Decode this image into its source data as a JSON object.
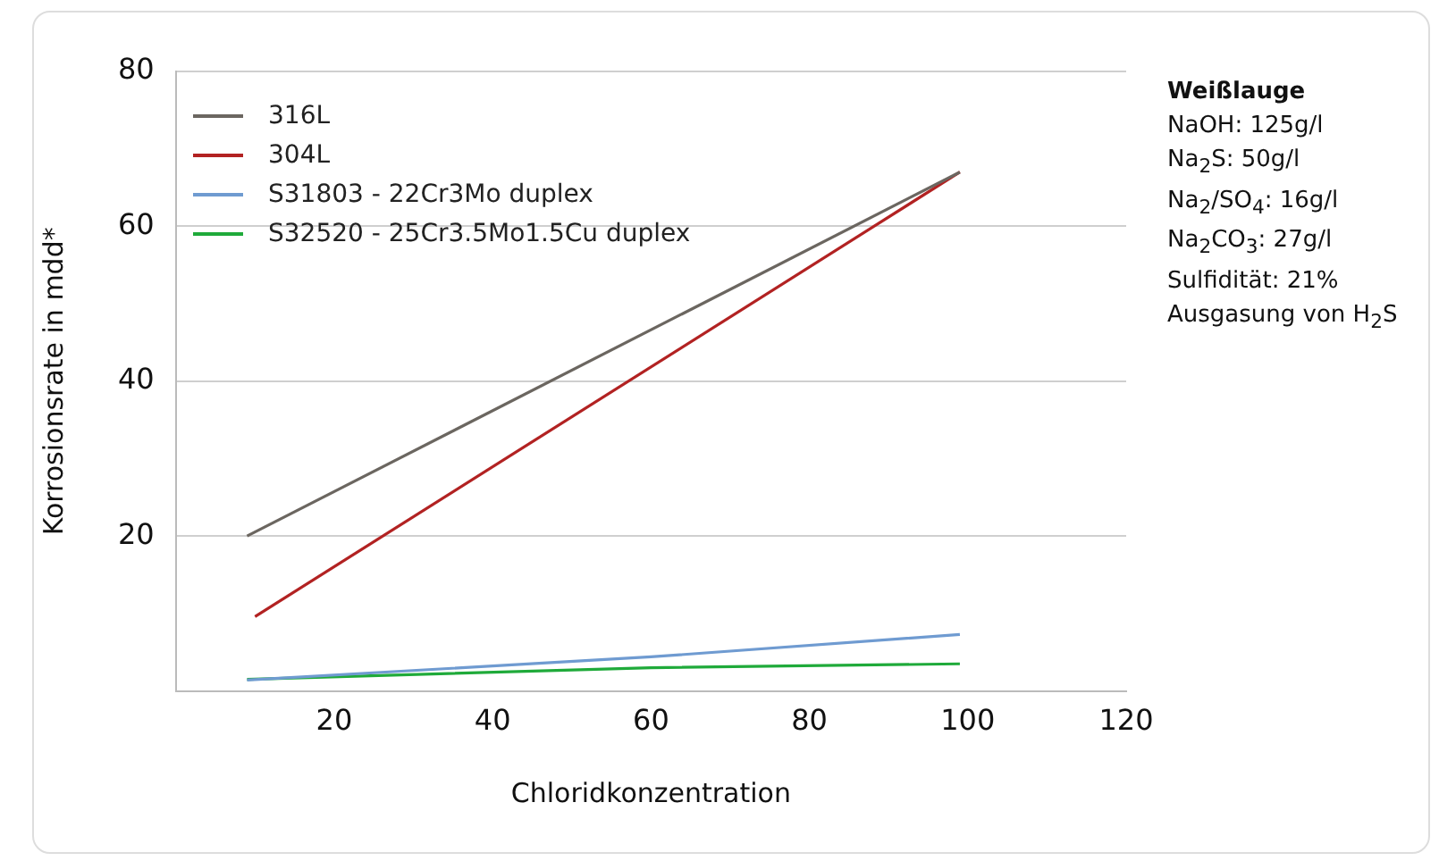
{
  "chart_data": {
    "type": "line",
    "xlabel": "Chloridkonzentration",
    "ylabel": "Korrosionsrate in mdd*",
    "xlim": [
      0,
      120
    ],
    "xticks": [
      {
        "value": 0,
        "label": null
      },
      20,
      40,
      60,
      80,
      100,
      120
    ],
    "ylim": [
      0,
      80
    ],
    "yticks": [
      {
        "value": 0,
        "label": null
      },
      20,
      40,
      60,
      80
    ],
    "grid": "y",
    "legend": "top left",
    "marker": "none",
    "line_style": "solid",
    "series": [
      {
        "name": "316L",
        "color": "#6b6660",
        "x": [
          9,
          99
        ],
        "values": [
          20,
          67
        ]
      },
      {
        "name": "304L",
        "color": "#b22222",
        "x": [
          10,
          99
        ],
        "values": [
          9.6,
          67
        ]
      },
      {
        "name": "S31803 - 22Cr3Mo duplex",
        "color": "#6f9bd1",
        "x": [
          9,
          60,
          99
        ],
        "values": [
          1.4,
          4.4,
          7.3
        ]
      },
      {
        "name": "S32520 - 25Cr3.5Mo1.5Cu duplex",
        "color": "#1faa3a",
        "x": [
          9,
          60,
          99
        ],
        "values": [
          1.5,
          3.0,
          3.5
        ]
      }
    ],
    "annotations": [
      "Weißlauge",
      "NaOH: 125g/l",
      "Na$_{2}$S: 50g/l",
      "Na$_{2}$/SO$_{4}$: 16g/l",
      "Na$_{2}$CO$_{3}$: 27g/l",
      "Sulfidität: 21%",
      "Ausgasung von H$_{2}$S"
    ]
  }
}
